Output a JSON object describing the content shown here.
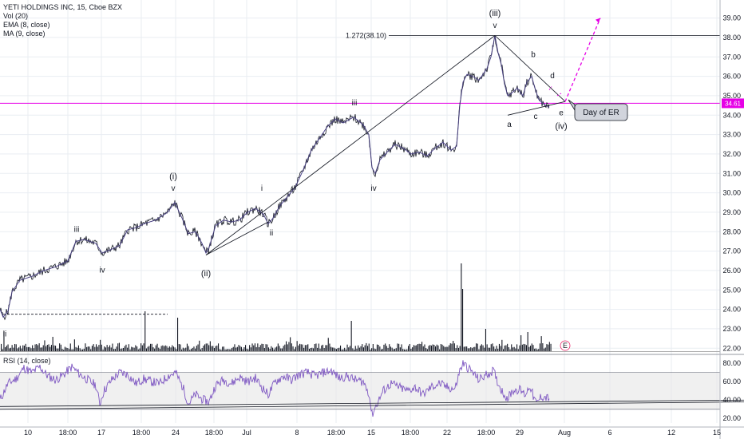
{
  "header": {
    "title": "YETI HOLDINGS INC, 15, Cboe BZX",
    "indicators": [
      "Vol (20)",
      "EMA (8, close)",
      "MA (9, close)"
    ],
    "rsi_label": "RSI (14, close)"
  },
  "colors": {
    "price": "#131722",
    "ema": "#6b5fbf",
    "rsi": "#7e57c2",
    "accent": "#e600e6",
    "grid": "#e9edf2",
    "rsi_band": "#e6e6e6"
  },
  "chart_data": [
    {
      "type": "line",
      "title": "YETI HOLDINGS INC, 15, Cboe BZX",
      "x_ticks": [
        "10",
        "18:00",
        "17",
        "18:00",
        "24",
        "18:00",
        "Jul",
        "8",
        "18:00",
        "15",
        "18:00",
        "22",
        "18:00",
        "29",
        "Aug",
        "6",
        "12",
        "15"
      ],
      "ylim": [
        21.6,
        39.6
      ],
      "y_ticks": [
        22,
        23,
        24,
        25,
        26,
        27,
        28,
        29,
        30,
        31,
        32,
        33,
        34,
        35,
        36,
        37,
        38,
        39
      ],
      "current_price": 34.61,
      "current_price_label": "34.61",
      "series": [
        {
          "name": "price",
          "points": [
            [
              0,
              24.0
            ],
            [
              4,
              23.6
            ],
            [
              10,
              23.9
            ],
            [
              15,
              24.9
            ],
            [
              25,
              25.5
            ],
            [
              40,
              25.7
            ],
            [
              55,
              26.0
            ],
            [
              70,
              26.2
            ],
            [
              85,
              26.5
            ],
            [
              95,
              27.5
            ],
            [
              105,
              27.6
            ],
            [
              120,
              27.4
            ],
            [
              128,
              26.9
            ],
            [
              140,
              27.1
            ],
            [
              150,
              27.3
            ],
            [
              160,
              28.1
            ],
            [
              170,
              28.2
            ],
            [
              180,
              28.4
            ],
            [
              195,
              28.6
            ],
            [
              210,
              29.0
            ],
            [
              219,
              29.5
            ],
            [
              228,
              28.7
            ],
            [
              236,
              27.9
            ],
            [
              245,
              28.0
            ],
            [
              253,
              27.4
            ],
            [
              258,
              26.9
            ],
            [
              262,
              27.2
            ],
            [
              270,
              28.3
            ],
            [
              280,
              28.6
            ],
            [
              290,
              28.5
            ],
            [
              300,
              28.6
            ],
            [
              310,
              29.0
            ],
            [
              320,
              29.2
            ],
            [
              330,
              28.9
            ],
            [
              336,
              28.4
            ],
            [
              342,
              28.7
            ],
            [
              350,
              29.3
            ],
            [
              360,
              29.8
            ],
            [
              370,
              30.3
            ],
            [
              380,
              31.2
            ],
            [
              390,
              32.2
            ],
            [
              400,
              32.8
            ],
            [
              410,
              33.4
            ],
            [
              420,
              33.8
            ],
            [
              430,
              33.6
            ],
            [
              443,
              33.9
            ],
            [
              455,
              33.5
            ],
            [
              462,
              33.0
            ],
            [
              466,
              31.3
            ],
            [
              470,
              31.0
            ],
            [
              476,
              31.7
            ],
            [
              485,
              32.1
            ],
            [
              495,
              32.5
            ],
            [
              505,
              32.3
            ],
            [
              515,
              32.0
            ],
            [
              525,
              32.1
            ],
            [
              535,
              31.9
            ],
            [
              545,
              32.3
            ],
            [
              555,
              32.6
            ],
            [
              565,
              32.2
            ],
            [
              572,
              32.4
            ],
            [
              576,
              34.5
            ],
            [
              580,
              35.7
            ],
            [
              585,
              36.1
            ],
            [
              592,
              36.0
            ],
            [
              600,
              35.8
            ],
            [
              610,
              36.4
            ],
            [
              615,
              37.0
            ],
            [
              620,
              38.1
            ],
            [
              624,
              37.2
            ],
            [
              628,
              36.6
            ],
            [
              632,
              35.6
            ],
            [
              636,
              35.0
            ],
            [
              640,
              35.1
            ],
            [
              648,
              35.4
            ],
            [
              655,
              35.0
            ],
            [
              660,
              35.7
            ],
            [
              666,
              36.0
            ],
            [
              670,
              35.4
            ],
            [
              675,
              34.8
            ],
            [
              680,
              34.6
            ],
            [
              688,
              34.4
            ]
          ]
        }
      ],
      "levels": [
        {
          "label": "1.272(38.10)",
          "value": 38.1
        }
      ],
      "annotations": {
        "wave_labels": [
          "ii",
          "iii",
          "iv",
          "(i)",
          "v",
          "(ii)",
          "i",
          "ii",
          "iii",
          "iv",
          "(iii)",
          "v",
          "a",
          "b",
          "c",
          "d",
          "e",
          "(iv)"
        ],
        "callout": "Day of ER",
        "earnings_marker": "E"
      }
    },
    {
      "type": "bar",
      "title": "Vol (20)",
      "note": "volume histogram shown without numeric scale"
    },
    {
      "type": "line",
      "title": "RSI (14, close)",
      "ylim": [
        15,
        88
      ],
      "y_ticks": [
        20.0,
        40.0,
        60.0,
        80.0
      ],
      "band": [
        30,
        70
      ],
      "series": [
        {
          "name": "RSI",
          "points": [
            [
              0,
              40
            ],
            [
              10,
              58
            ],
            [
              20,
              63
            ],
            [
              30,
              75
            ],
            [
              40,
              70
            ],
            [
              50,
              76
            ],
            [
              60,
              66
            ],
            [
              70,
              62
            ],
            [
              80,
              68
            ],
            [
              90,
              76
            ],
            [
              100,
              68
            ],
            [
              110,
              62
            ],
            [
              120,
              56
            ],
            [
              125,
              36
            ],
            [
              130,
              50
            ],
            [
              140,
              62
            ],
            [
              150,
              70
            ],
            [
              160,
              68
            ],
            [
              170,
              58
            ],
            [
              180,
              63
            ],
            [
              190,
              60
            ],
            [
              200,
              58
            ],
            [
              210,
              66
            ],
            [
              220,
              70
            ],
            [
              230,
              52
            ],
            [
              236,
              36
            ],
            [
              245,
              46
            ],
            [
              255,
              40
            ],
            [
              262,
              38
            ],
            [
              270,
              56
            ],
            [
              280,
              62
            ],
            [
              290,
              58
            ],
            [
              300,
              65
            ],
            [
              310,
              60
            ],
            [
              320,
              64
            ],
            [
              330,
              52
            ],
            [
              336,
              46
            ],
            [
              345,
              60
            ],
            [
              355,
              66
            ],
            [
              365,
              62
            ],
            [
              375,
              68
            ],
            [
              385,
              70
            ],
            [
              395,
              66
            ],
            [
              405,
              70
            ],
            [
              415,
              72
            ],
            [
              425,
              64
            ],
            [
              435,
              66
            ],
            [
              445,
              62
            ],
            [
              455,
              60
            ],
            [
              462,
              48
            ],
            [
              466,
              24
            ],
            [
              470,
              32
            ],
            [
              480,
              50
            ],
            [
              490,
              58
            ],
            [
              500,
              54
            ],
            [
              510,
              50
            ],
            [
              520,
              54
            ],
            [
              530,
              46
            ],
            [
              540,
              54
            ],
            [
              550,
              58
            ],
            [
              560,
              54
            ],
            [
              570,
              52
            ],
            [
              576,
              72
            ],
            [
              580,
              80
            ],
            [
              590,
              72
            ],
            [
              600,
              62
            ],
            [
              610,
              68
            ],
            [
              618,
              72
            ],
            [
              624,
              58
            ],
            [
              630,
              48
            ],
            [
              636,
              42
            ],
            [
              642,
              50
            ],
            [
              650,
              52
            ],
            [
              658,
              46
            ],
            [
              664,
              56
            ],
            [
              668,
              44
            ],
            [
              672,
              36
            ],
            [
              678,
              44
            ],
            [
              688,
              42
            ]
          ]
        }
      ]
    }
  ]
}
